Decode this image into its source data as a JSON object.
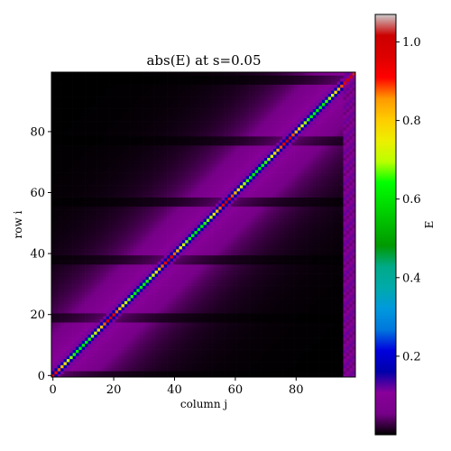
{
  "chart_data": {
    "type": "heatmap",
    "title": "abs(E) at s=0.05",
    "xlabel": "column j",
    "ylabel": "row i",
    "xlim": [
      0,
      99
    ],
    "ylim": [
      0,
      99
    ],
    "xticks": [
      0,
      20,
      40,
      60,
      80
    ],
    "yticks": [
      0,
      20,
      40,
      60,
      80
    ],
    "colorbar": {
      "label": "E",
      "range": [
        0.0,
        1.07
      ],
      "ticks": [
        0.2,
        0.4,
        0.6,
        0.8,
        1.0
      ],
      "colormap": "nipy_spectral"
    },
    "diagonal_peak_value": 1.0,
    "block_boundaries": [
      0,
      19,
      38,
      57,
      77,
      97
    ],
    "block_center_value": 0.62,
    "background_value": 0.0,
    "near_diagonal_value": 0.12,
    "edge_columns": [
      96,
      97,
      98,
      99
    ]
  }
}
